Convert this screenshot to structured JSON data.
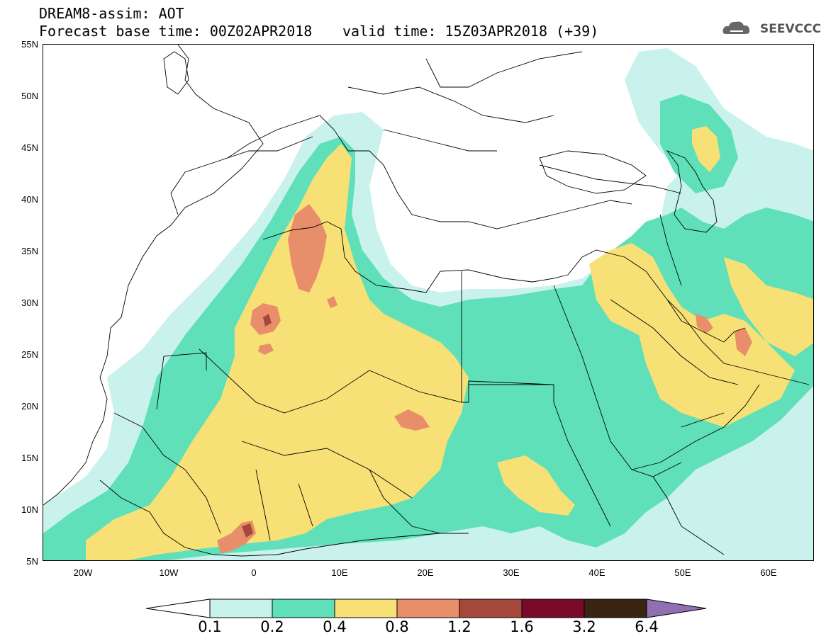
{
  "header": {
    "title": "DREAM8-assim: AOT",
    "base_time": "Forecast base time: 00Z02APR2018",
    "valid_time": "valid time: 15Z03APR2018 (+39)"
  },
  "logo": {
    "text": "SEEVCCC",
    "icon": "cloud-icon"
  },
  "map": {
    "lon_range": [
      -25,
      65
    ],
    "lat_range": [
      5,
      55
    ],
    "lat_labels": [
      "55N",
      "50N",
      "45N",
      "40N",
      "35N",
      "30N",
      "25N",
      "20N",
      "15N",
      "10N",
      "5N"
    ],
    "lon_labels": [
      "20W",
      "10W",
      "0",
      "10E",
      "20E",
      "30E",
      "40E",
      "50E",
      "60E"
    ],
    "legend": {
      "labels": [
        "0.1",
        "0.2",
        "0.4",
        "0.8",
        "1.2",
        "1.6",
        "3.2",
        "6.4"
      ],
      "colors": [
        "#ffffff",
        "#c9f2ec",
        "#5fe0b8",
        "#f7e176",
        "#e98e6a",
        "#a5473a",
        "#7a0a2a",
        "#3a2513",
        "#9070b0"
      ]
    }
  }
}
